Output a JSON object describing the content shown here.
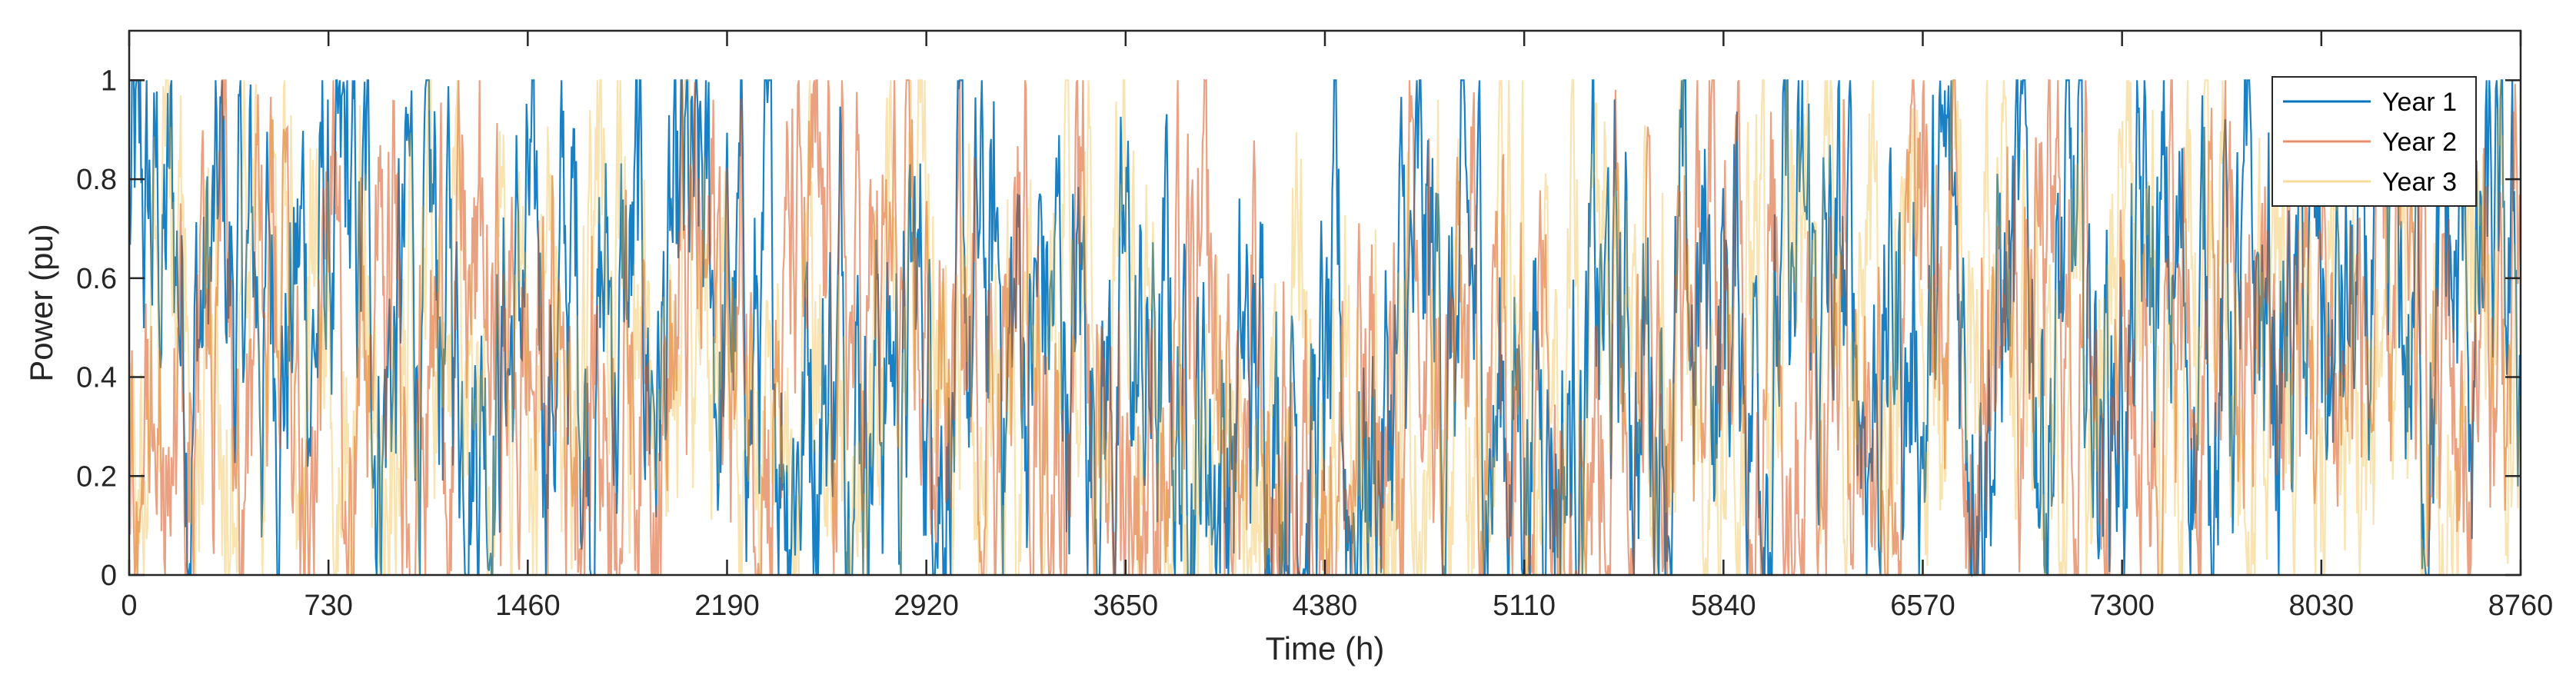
{
  "chart_data": {
    "type": "line",
    "title": "",
    "xlabel": "Time (h)",
    "ylabel": "Power (pu)",
    "xlim": [
      0,
      8760
    ],
    "ylim": [
      0,
      1.1
    ],
    "xticks": [
      0,
      730,
      1460,
      2190,
      2920,
      3650,
      4380,
      5110,
      5840,
      6570,
      7300,
      8030,
      8760
    ],
    "xtick_labels": [
      "0",
      "730",
      "1460",
      "2190",
      "2920",
      "3650",
      "4380",
      "5110",
      "5840",
      "6570",
      "7300",
      "8030",
      "8760"
    ],
    "yticks": [
      0,
      0.2,
      0.4,
      0.6,
      0.8,
      1
    ],
    "ytick_labels": [
      "0",
      "0.2",
      "0.4",
      "0.6",
      "0.8",
      "1"
    ],
    "grid": false,
    "legend_position": "top-right",
    "series": [
      {
        "name": "Year 1",
        "color": "#0072BD",
        "x": [
          0,
          365,
          730,
          1095,
          1460,
          1825,
          2190,
          2555,
          2920,
          3285,
          3650,
          4015,
          4380,
          4745,
          5110,
          5475,
          5840,
          6205,
          6570,
          6935,
          7300,
          7665,
          8030,
          8395,
          8760
        ],
        "values": [
          0.7,
          0.5,
          0.6,
          0.45,
          0.55,
          0.5,
          0.45,
          0.55,
          0.4,
          0.5,
          0.35,
          0.3,
          0.15,
          0.45,
          0.3,
          0.4,
          0.55,
          0.45,
          0.5,
          0.55,
          0.45,
          0.5,
          0.4,
          0.45,
          0.5
        ]
      },
      {
        "name": "Year 2",
        "color": "#D95319",
        "x": [
          0,
          365,
          730,
          1095,
          1460,
          1825,
          2190,
          2555,
          2920,
          3285,
          3650,
          4015,
          4380,
          4745,
          5110,
          5475,
          5840,
          6205,
          6570,
          6935,
          7300,
          7665,
          8030,
          8395,
          8760
        ],
        "values": [
          0.3,
          0.35,
          0.45,
          0.5,
          0.4,
          0.45,
          0.5,
          0.45,
          0.4,
          0.45,
          0.3,
          0.2,
          0.1,
          0.25,
          0.4,
          0.45,
          0.5,
          0.55,
          0.45,
          0.5,
          0.45,
          0.4,
          0.45,
          0.35,
          0.4
        ]
      },
      {
        "name": "Year 3",
        "color": "#EDB120",
        "x": [
          0,
          365,
          730,
          1095,
          1460,
          1825,
          2190,
          2555,
          2920,
          3285,
          3650,
          4015,
          4380,
          4745,
          5110,
          5475,
          5840,
          6205,
          6570,
          6935,
          7300,
          7665,
          8030,
          8395,
          8760
        ],
        "values": [
          0.45,
          0.4,
          0.5,
          0.45,
          0.5,
          0.55,
          0.45,
          0.4,
          0.45,
          0.4,
          0.35,
          0.2,
          0.1,
          0.3,
          0.35,
          0.45,
          0.4,
          0.5,
          0.45,
          0.4,
          0.45,
          0.4,
          0.35,
          0.4,
          0.45
        ]
      }
    ]
  }
}
